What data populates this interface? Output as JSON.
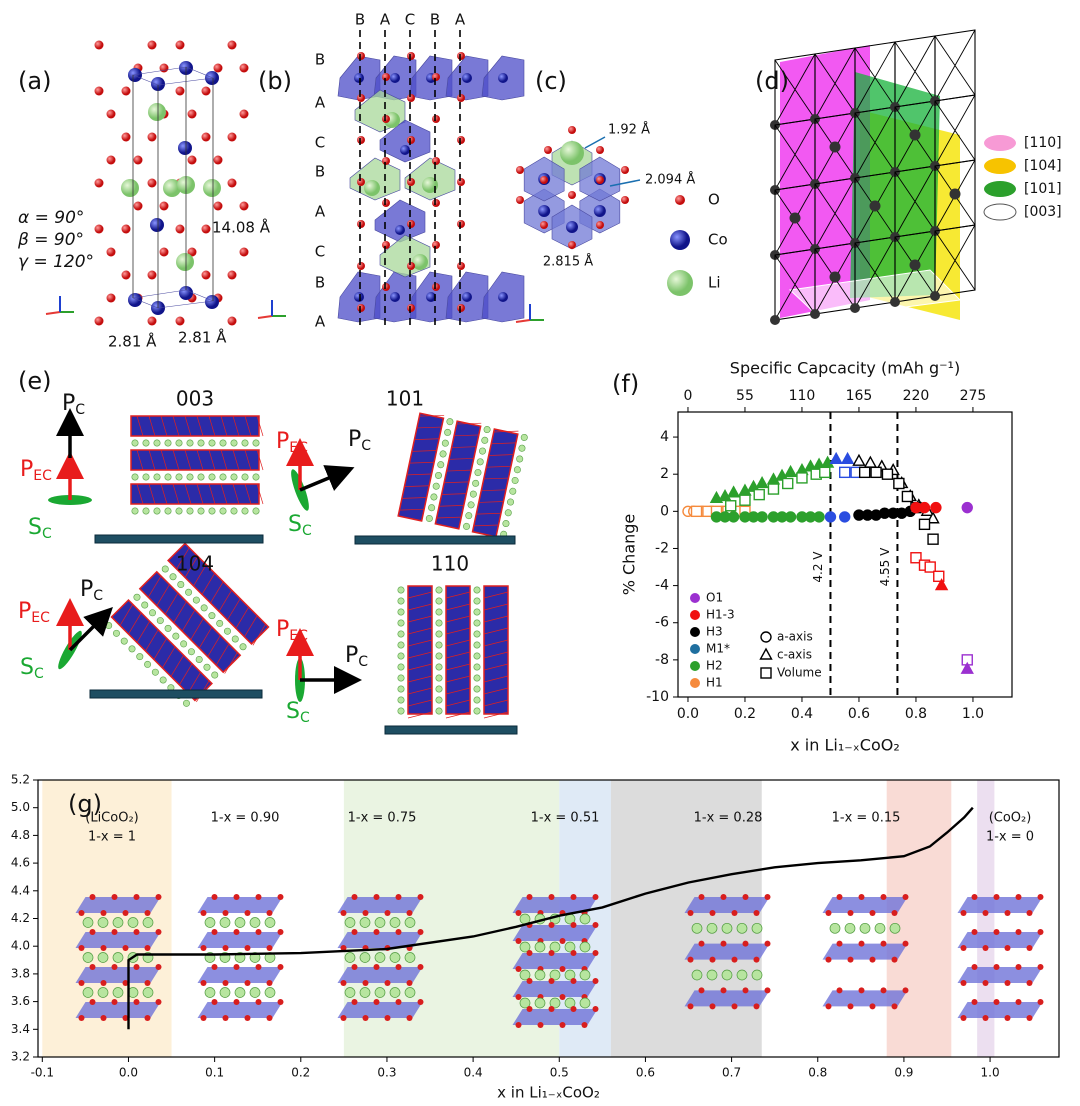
{
  "panels": {
    "a": {
      "label": "(a)",
      "angles": [
        "α = 90°",
        "β = 90°",
        "γ = 120°"
      ],
      "c_length": "14.08 Å",
      "a_lengths": [
        "2.81 Å",
        "2.81 Å"
      ]
    },
    "b": {
      "label": "(b)",
      "columns": [
        "B",
        "A",
        "C",
        "B",
        "A"
      ],
      "layers": [
        "B",
        "A",
        "C",
        "B",
        "A",
        "C",
        "B",
        "A"
      ]
    },
    "c": {
      "label": "(c)",
      "distances": [
        "1.92 Å",
        "2.094 Å",
        "2.815 Å"
      ],
      "legend": [
        "O",
        "Co",
        "Li"
      ]
    },
    "d": {
      "label": "(d)",
      "legend": [
        "[110]",
        "[104]",
        "[101]",
        "[003]"
      ]
    },
    "e": {
      "label": "(e)",
      "orientations": [
        {
          "title": "003",
          "vectors": [
            {
              "base": "P",
              "sub": "C"
            },
            {
              "base": "P",
              "sub": "EC"
            },
            {
              "base": "S",
              "sub": "C"
            }
          ]
        },
        {
          "title": "101",
          "vectors": [
            {
              "base": "P",
              "sub": "C"
            },
            {
              "base": "P",
              "sub": "EC"
            },
            {
              "base": "S",
              "sub": "C"
            }
          ]
        },
        {
          "title": "104",
          "vectors": [
            {
              "base": "P",
              "sub": "C"
            },
            {
              "base": "P",
              "sub": "EC"
            },
            {
              "base": "S",
              "sub": "C"
            }
          ]
        },
        {
          "title": "110",
          "vectors": [
            {
              "base": "P",
              "sub": "C"
            },
            {
              "base": "P",
              "sub": "EC"
            },
            {
              "base": "S",
              "sub": "C"
            }
          ]
        }
      ]
    }
  },
  "chart_data": [
    {
      "type": "scatter",
      "label": "(f)",
      "x2label": "Specific Capcacity (mAh g⁻¹)",
      "ylabel": "% Change",
      "xlabel": "x in Li₁₋ₓCoO₂",
      "xlim": [
        -0.035,
        1.137
      ],
      "xticks": [
        {
          "value": 0,
          "label": "0.0"
        },
        0.2,
        0.4,
        0.6,
        0.8,
        {
          "value": 1,
          "label": "1.0"
        }
      ],
      "x2lim": [
        -9.625,
        312.7
      ],
      "x2ticks": [
        0,
        55,
        110,
        165,
        220,
        275
      ],
      "ylim": [
        -10,
        5.35
      ],
      "yticks": [
        -10,
        -8,
        -6,
        -4,
        -2,
        0,
        2,
        4
      ],
      "series": [
        {
          "color": "#f58a3c",
          "marker": "circle",
          "filled": false,
          "x": [
            0,
            0.02,
            0.05,
            0.08,
            0.12,
            0.15,
            0.18,
            0.2
          ],
          "values": [
            0,
            0,
            0,
            0,
            0,
            0,
            0,
            0
          ]
        },
        {
          "color": "#f58a3c",
          "marker": "square",
          "filled": false,
          "x": [
            0.03,
            0.07,
            0.1,
            0.14,
            0.17,
            0.2
          ],
          "values": [
            0,
            0,
            0,
            0,
            0,
            0
          ]
        },
        {
          "color": "#2ca02c",
          "marker": "circle",
          "filled": true,
          "x": [
            0.1,
            0.13,
            0.16,
            0.2,
            0.23,
            0.26,
            0.3,
            0.33,
            0.36,
            0.4,
            0.43,
            0.46
          ],
          "values": [
            -0.3,
            -0.3,
            -0.3,
            -0.3,
            -0.3,
            -0.3,
            -0.3,
            -0.3,
            -0.3,
            -0.3,
            -0.3,
            -0.3
          ]
        },
        {
          "color": "#2ca02c",
          "marker": "triangle",
          "filled": true,
          "x": [
            0.1,
            0.13,
            0.16,
            0.2,
            0.23,
            0.26,
            0.3,
            0.33,
            0.36,
            0.4,
            0.43,
            0.46,
            0.49
          ],
          "values": [
            0.7,
            0.8,
            1,
            1.1,
            1.3,
            1.5,
            1.7,
            1.9,
            2.1,
            2.2,
            2.4,
            2.5,
            2.6
          ]
        },
        {
          "color": "#2ca02c",
          "marker": "square",
          "filled": false,
          "x": [
            0.15,
            0.2,
            0.25,
            0.3,
            0.35,
            0.4,
            0.45,
            0.48
          ],
          "values": [
            0.3,
            0.6,
            0.9,
            1.2,
            1.5,
            1.8,
            2,
            2.1
          ]
        },
        {
          "color": "#2a4de0",
          "marker": "circle",
          "filled": true,
          "x": [
            0.5,
            0.55
          ],
          "values": [
            -0.3,
            -0.3
          ]
        },
        {
          "color": "#2a4de0",
          "marker": "triangle",
          "filled": true,
          "x": [
            0.52,
            0.56
          ],
          "values": [
            2.8,
            2.8
          ]
        },
        {
          "color": "#2a4de0",
          "marker": "square",
          "filled": false,
          "x": [
            0.55,
            0.59
          ],
          "values": [
            2.1,
            2.1
          ]
        },
        {
          "color": "#000000",
          "marker": "circle",
          "filled": true,
          "x": [
            0.6,
            0.63,
            0.66,
            0.69,
            0.72,
            0.75,
            0.78
          ],
          "values": [
            -0.2,
            -0.2,
            -0.2,
            -0.1,
            -0.1,
            -0.1,
            0
          ]
        },
        {
          "color": "#000000",
          "marker": "triangle",
          "filled": false,
          "x": [
            0.6,
            0.64,
            0.68,
            0.72,
            0.75,
            0.78,
            0.81,
            0.84,
            0.86
          ],
          "values": [
            2.7,
            2.6,
            2.4,
            2.2,
            1.5,
            0.8,
            0.3,
            0,
            -0.4
          ]
        },
        {
          "color": "#000000",
          "marker": "square",
          "filled": false,
          "x": [
            0.62,
            0.66,
            0.7,
            0.74,
            0.77,
            0.8,
            0.83,
            0.86
          ],
          "values": [
            2.1,
            2.1,
            2,
            1.5,
            0.8,
            0.2,
            -0.7,
            -1.5
          ]
        },
        {
          "color": "#f01010",
          "marker": "circle",
          "filled": true,
          "x": [
            0.8,
            0.83,
            0.87
          ],
          "values": [
            0.2,
            0.2,
            0.2
          ]
        },
        {
          "color": "#f01010",
          "marker": "square",
          "filled": false,
          "x": [
            0.8,
            0.83,
            0.85,
            0.88
          ],
          "values": [
            -2.5,
            -2.9,
            -3,
            -3.5
          ]
        },
        {
          "color": "#f01010",
          "marker": "triangle",
          "filled": true,
          "x": [
            0.89
          ],
          "values": [
            -4
          ]
        },
        {
          "color": "#9b30d0",
          "marker": "circle",
          "filled": true,
          "x": [
            0.98
          ],
          "values": [
            0.2
          ]
        },
        {
          "color": "#9b30d0",
          "marker": "square",
          "filled": false,
          "x": [
            0.98
          ],
          "values": [
            -8
          ]
        },
        {
          "color": "#9b30d0",
          "marker": "triangle",
          "filled": true,
          "x": [
            0.98
          ],
          "values": [
            -8.5
          ]
        }
      ],
      "legend": {
        "phases": [
          {
            "name": "O1",
            "color": "#9b30d0"
          },
          {
            "name": "H1-3",
            "color": "#f01010"
          },
          {
            "name": "H3",
            "color": "#000000"
          },
          {
            "name": "M1*",
            "color": "#1f6f9f"
          },
          {
            "name": "H2",
            "color": "#2ca02c"
          },
          {
            "name": "H1",
            "color": "#f58a3c"
          }
        ],
        "measures": [
          {
            "name": "a-axis",
            "marker": "circle"
          },
          {
            "name": "c-axis",
            "marker": "triangle"
          },
          {
            "name": "Volume",
            "marker": "square"
          }
        ]
      },
      "annotations": [
        {
          "x": 0.5,
          "text": "4.2 V"
        },
        {
          "x": 0.735,
          "text": "4.55 V"
        }
      ]
    },
    {
      "type": "line",
      "label": "(g)",
      "xlabel": "x in Li₁₋ₓCoO₂",
      "color": "#000000",
      "xlim": [
        -0.105,
        1.08
      ],
      "xticks": [
        -0.1,
        {
          "value": 0,
          "label": "0.0"
        },
        0.1,
        0.2,
        0.3,
        0.4,
        0.5,
        0.6,
        0.7,
        0.8,
        0.9,
        {
          "value": 1,
          "label": "1.0"
        }
      ],
      "ylim": [
        3.2,
        5.2
      ],
      "yticks": [
        3.2,
        3.4,
        3.6,
        3.8,
        {
          "value": 4,
          "label": "4.0"
        },
        4.2,
        4.4,
        4.6,
        4.8,
        {
          "value": 5,
          "label": "5.0"
        },
        5.2
      ],
      "x": [
        0,
        0,
        0.01,
        0.1,
        0.2,
        0.3,
        0.4,
        0.45,
        0.5,
        0.55,
        0.6,
        0.65,
        0.7,
        0.75,
        0.8,
        0.85,
        0.9,
        0.93,
        0.95,
        0.97,
        0.98
      ],
      "values": [
        3.4,
        3.9,
        3.94,
        3.94,
        3.95,
        3.98,
        4.07,
        4.14,
        4.22,
        4.28,
        4.38,
        4.46,
        4.52,
        4.57,
        4.6,
        4.62,
        4.65,
        4.72,
        4.82,
        4.93,
        5
      ],
      "regions": [
        {
          "x": [
            -0.1,
            0.05
          ],
          "color": "#fdf0d8"
        },
        {
          "x": [
            0.25,
            0.5
          ],
          "color": "#eaf4e2"
        },
        {
          "x": [
            0.5,
            0.56
          ],
          "color": "#dfeaf6"
        },
        {
          "x": [
            0.56,
            0.735
          ],
          "color": "#dcdcdc"
        },
        {
          "x": [
            0.88,
            0.955
          ],
          "color": "#f9dbd5"
        },
        {
          "x": [
            0.985,
            1.005
          ],
          "color": "#ecdff0"
        }
      ],
      "annotations": [
        [
          "(LiCoO₂)",
          "1-x = 1"
        ],
        [
          "1-x = 0.90"
        ],
        [
          "1-x = 0.75"
        ],
        [
          "1-x = 0.51"
        ],
        [
          "1-x = 0.28"
        ],
        [
          "1-x = 0.15"
        ],
        [
          "(CoO₂)",
          "1-x = 0"
        ]
      ]
    }
  ]
}
